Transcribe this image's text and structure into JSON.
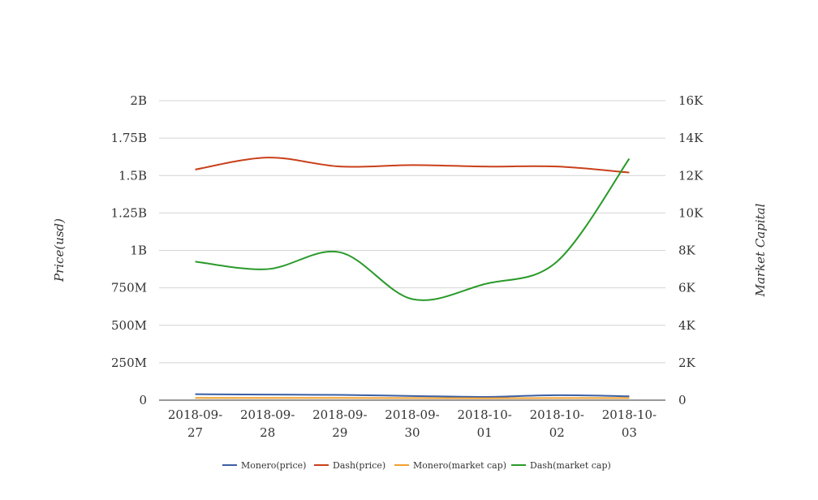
{
  "chart_data": {
    "type": "line",
    "title": "",
    "x": [
      "2018-09-27",
      "2018-09-28",
      "2018-09-29",
      "2018-09-30",
      "2018-10-01",
      "2018-10-02",
      "2018-10-03"
    ],
    "x_tick_lines": [
      [
        "2018-09-",
        "27"
      ],
      [
        "2018-09-",
        "28"
      ],
      [
        "2018-09-",
        "29"
      ],
      [
        "2018-09-",
        "30"
      ],
      [
        "2018-10-",
        "01"
      ],
      [
        "2018-10-",
        "02"
      ],
      [
        "2018-10-",
        "03"
      ]
    ],
    "y_left": {
      "label": "Price(usd)",
      "ylim": [
        0,
        2000000000
      ],
      "ticks": [
        0,
        250000000,
        500000000,
        750000000,
        1000000000,
        1250000000,
        1500000000,
        1750000000,
        2000000000
      ],
      "tick_labels": [
        "0",
        "250M",
        "500M",
        "750M",
        "1B",
        "1.25B",
        "1.5B",
        "1.75B",
        "2B"
      ]
    },
    "y_right": {
      "label": "Market Capital",
      "ylim": [
        0,
        16000
      ],
      "ticks": [
        0,
        2000,
        4000,
        6000,
        8000,
        10000,
        12000,
        14000,
        16000
      ],
      "tick_labels": [
        "0",
        "2K",
        "4K",
        "6K",
        "8K",
        "10K",
        "12K",
        "14K",
        "16K"
      ]
    },
    "grid": true,
    "legend_position": "bottom",
    "series": [
      {
        "name": "Monero(price)",
        "axis": "left",
        "color": "#3b5fa3",
        "values": [
          40000000,
          37000000,
          35000000,
          28000000,
          22000000,
          33000000,
          26000000
        ]
      },
      {
        "name": "Dash(price)",
        "axis": "left",
        "color": "#c9401a",
        "values": [
          1540000000,
          1620000000,
          1560000000,
          1570000000,
          1560000000,
          1560000000,
          1520000000
        ]
      },
      {
        "name": "Monero(market cap)",
        "axis": "left",
        "color": "#f0a030",
        "values": [
          15000000,
          15000000,
          15000000,
          14000000,
          13000000,
          14000000,
          14000000
        ]
      },
      {
        "name": "Dash(market cap)",
        "axis": "right",
        "color": "#2a9a2a",
        "values": [
          7400,
          7000,
          7900,
          5400,
          6200,
          7400,
          12900
        ]
      }
    ]
  }
}
